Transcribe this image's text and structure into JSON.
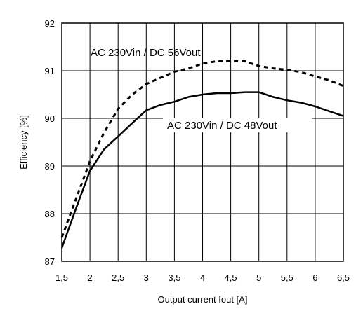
{
  "chart_data": {
    "type": "line",
    "xlabel": "Output current Iout [A]",
    "ylabel": "Efficiency [%]",
    "xlim": [
      1.5,
      6.5
    ],
    "ylim": [
      87,
      92
    ],
    "grid": true,
    "x_ticks": [
      "1,5",
      "2",
      "2,5",
      "3",
      "3,5",
      "4",
      "4,5",
      "5",
      "5,5",
      "6",
      "6,5"
    ],
    "y_ticks": [
      "87",
      "88",
      "89",
      "90",
      "91",
      "92"
    ],
    "series": [
      {
        "name": "AC 230Vin / DC 56Vout",
        "style": "dashed",
        "color": "#000000",
        "x": [
          1.5,
          1.75,
          2.0,
          2.25,
          2.5,
          2.75,
          3.0,
          3.25,
          3.5,
          3.75,
          4.0,
          4.25,
          4.5,
          4.75,
          5.0,
          5.25,
          5.5,
          5.75,
          6.0,
          6.25,
          6.5
        ],
        "y": [
          87.5,
          88.3,
          89.1,
          89.7,
          90.2,
          90.5,
          90.72,
          90.85,
          90.98,
          91.05,
          91.15,
          91.2,
          91.2,
          91.2,
          91.1,
          91.05,
          91.02,
          90.97,
          90.88,
          90.8,
          90.68
        ]
      },
      {
        "name": "AC 230Vin / DC 48Vout",
        "style": "solid",
        "color": "#000000",
        "x": [
          1.5,
          1.75,
          2.0,
          2.25,
          2.5,
          2.75,
          3.0,
          3.25,
          3.5,
          3.75,
          4.0,
          4.25,
          4.5,
          4.75,
          5.0,
          5.25,
          5.5,
          5.75,
          6.0,
          6.25,
          6.5
        ],
        "y": [
          87.28,
          88.1,
          88.9,
          89.35,
          89.62,
          89.9,
          90.17,
          90.28,
          90.35,
          90.45,
          90.5,
          90.53,
          90.53,
          90.55,
          90.55,
          90.45,
          90.38,
          90.33,
          90.25,
          90.15,
          90.05
        ]
      }
    ],
    "annotations": [
      "AC 230Vin / DC 56Vout",
      "AC 230Vin / DC 48Vout"
    ]
  }
}
